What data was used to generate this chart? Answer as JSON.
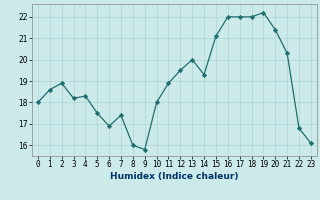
{
  "x": [
    0,
    1,
    2,
    3,
    4,
    5,
    6,
    7,
    8,
    9,
    10,
    11,
    12,
    13,
    14,
    15,
    16,
    17,
    18,
    19,
    20,
    21,
    22,
    23
  ],
  "y": [
    18.0,
    18.6,
    18.9,
    18.2,
    18.3,
    17.5,
    16.9,
    17.4,
    16.0,
    15.8,
    18.0,
    18.9,
    19.5,
    20.0,
    19.3,
    21.1,
    22.0,
    22.0,
    22.0,
    22.2,
    21.4,
    20.3,
    16.8,
    16.1
  ],
  "xlabel": "Humidex (Indice chaleur)",
  "ylim": [
    15.5,
    22.6
  ],
  "xlim": [
    -0.5,
    23.5
  ],
  "yticks": [
    16,
    17,
    18,
    19,
    20,
    21,
    22
  ],
  "line_color": "#1e6e6e",
  "marker": "D",
  "marker_size": 2.2,
  "bg_color": "#cceaea",
  "grid_color": "#aed4d4",
  "label_fontsize": 6.5,
  "tick_fontsize": 5.5
}
